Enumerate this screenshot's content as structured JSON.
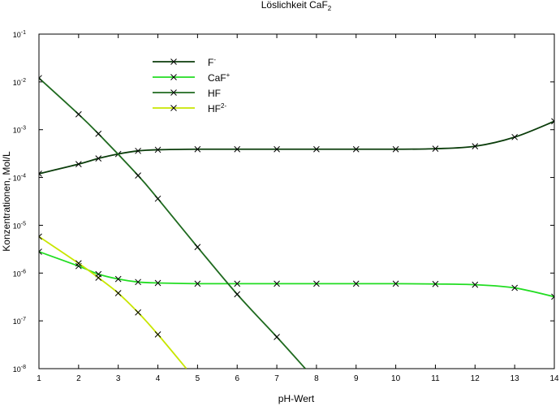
{
  "chart_data": {
    "type": "line",
    "title": {
      "text": "Löslichkeit CaF",
      "sub": "2"
    },
    "xlabel": "pH-Wert",
    "ylabel": "Konzentrationen, Mol/L",
    "xlim": [
      1,
      14
    ],
    "ylim_exp": [
      -8,
      -1
    ],
    "yscale": "log",
    "grid": false,
    "legend_position": "top-left",
    "x_ticks": [
      "1",
      "2",
      "3",
      "4",
      "5",
      "6",
      "7",
      "8",
      "9",
      "10",
      "11",
      "12",
      "13",
      "14"
    ],
    "y_ticks": [
      {
        "base": "10",
        "exp": "-8"
      },
      {
        "base": "10",
        "exp": "-7"
      },
      {
        "base": "10",
        "exp": "-6"
      },
      {
        "base": "10",
        "exp": "-5"
      },
      {
        "base": "10",
        "exp": "-4"
      },
      {
        "base": "10",
        "exp": "-3"
      },
      {
        "base": "10",
        "exp": "-2"
      },
      {
        "base": "10",
        "exp": "-1"
      }
    ],
    "series": [
      {
        "name": "F",
        "name_sup": "-",
        "color": "#0b3d0b",
        "marker": "x",
        "x": [
          1,
          2,
          2.5,
          3,
          3.5,
          4,
          5,
          6,
          7,
          8,
          9,
          10,
          11,
          12,
          13,
          14
        ],
        "y": [
          0.00012,
          0.00019,
          0.00025,
          0.00031,
          0.00036,
          0.00038,
          0.00039,
          0.00039,
          0.00039,
          0.00039,
          0.00039,
          0.00039,
          0.0004,
          0.00045,
          0.0007,
          0.0015
        ]
      },
      {
        "name": "CaF",
        "name_sup": "+",
        "color": "#22dd22",
        "marker": "x",
        "x": [
          1,
          2,
          2.5,
          3,
          3.5,
          4,
          5,
          6,
          7,
          8,
          9,
          10,
          11,
          12,
          13,
          14
        ],
        "y": [
          2.8e-06,
          1.4e-06,
          9.5e-07,
          7.5e-07,
          6.5e-07,
          6.2e-07,
          6e-07,
          6e-07,
          6e-07,
          6e-07,
          6e-07,
          6e-07,
          5.9e-07,
          5.7e-07,
          4.9e-07,
          3.2e-07
        ]
      },
      {
        "name": "HF",
        "name_sup": "",
        "color": "#1f6a1f",
        "marker": "x",
        "x": [
          1,
          2,
          2.5,
          3.5,
          4,
          5,
          6,
          7,
          7.72
        ],
        "y": [
          0.012,
          0.0021,
          0.00082,
          0.00011,
          3.6e-05,
          3.5e-06,
          3.6e-07,
          4.6e-08,
          1e-08
        ],
        "marker_count": 8
      },
      {
        "name": "HF",
        "name_sup": "2-",
        "color": "#c8e600",
        "marker": "x",
        "x": [
          1,
          2,
          2.5,
          3,
          3.5,
          4,
          4.72
        ],
        "y": [
          5.8e-06,
          1.6e-06,
          8e-07,
          3.8e-07,
          1.5e-07,
          5.2e-08,
          1e-08
        ],
        "marker_count": 6
      }
    ]
  }
}
